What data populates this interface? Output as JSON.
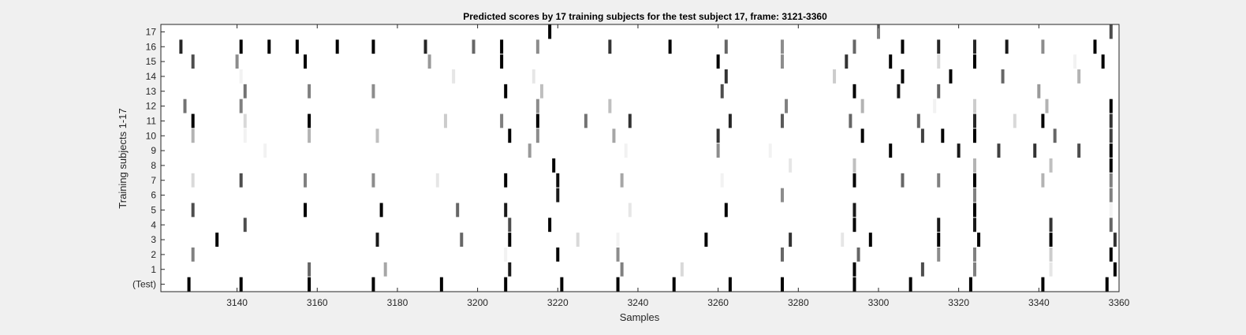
{
  "chart_data": {
    "type": "heatmap",
    "title": "Predicted scores by 17 training subjects for the test subject 17, frame: 3121-3360",
    "xlabel": "Samples",
    "ylabel": "Training subjects 1-17",
    "xlim": [
      3121,
      3360
    ],
    "xticks": [
      3140,
      3160,
      3180,
      3200,
      3220,
      3240,
      3260,
      3280,
      3300,
      3320,
      3340,
      3360
    ],
    "rows": [
      "(Test)",
      "1",
      "2",
      "3",
      "4",
      "5",
      "6",
      "7",
      "8",
      "9",
      "10",
      "11",
      "12",
      "13",
      "14",
      "15",
      "16",
      "17"
    ],
    "colormap": "gray, white = 0, black = 1",
    "grid": false,
    "series": [
      {
        "row": "(Test)",
        "cells": [
          [
            3128,
            1
          ],
          [
            3141,
            1
          ],
          [
            3158,
            1
          ],
          [
            3174,
            1
          ],
          [
            3191,
            1
          ],
          [
            3207,
            1
          ],
          [
            3221,
            1
          ],
          [
            3235,
            1
          ],
          [
            3249,
            1
          ],
          [
            3263,
            1
          ],
          [
            3276,
            1
          ],
          [
            3294,
            1
          ],
          [
            3308,
            1
          ],
          [
            3323,
            1
          ],
          [
            3341,
            1
          ],
          [
            3357,
            1
          ]
        ]
      },
      {
        "row": "1",
        "cells": [
          [
            3158,
            0.6
          ],
          [
            3177,
            0.35
          ],
          [
            3208,
            0.9
          ],
          [
            3236,
            0.5
          ],
          [
            3251,
            0.15
          ],
          [
            3294,
            1
          ],
          [
            3311,
            0.7
          ],
          [
            3324,
            0.5
          ],
          [
            3343,
            0.1
          ],
          [
            3359,
            1
          ]
        ]
      },
      {
        "row": "2",
        "cells": [
          [
            3129,
            0.5
          ],
          [
            3207,
            0.05
          ],
          [
            3220,
            1
          ],
          [
            3235,
            0.45
          ],
          [
            3276,
            0.6
          ],
          [
            3295,
            0.6
          ],
          [
            3315,
            0.45
          ],
          [
            3324,
            0.5
          ],
          [
            3343,
            0.2
          ],
          [
            3358,
            1
          ]
        ]
      },
      {
        "row": "3",
        "cells": [
          [
            3135,
            1
          ],
          [
            3175,
            0.9
          ],
          [
            3196,
            0.6
          ],
          [
            3208,
            1
          ],
          [
            3225,
            0.15
          ],
          [
            3235,
            0.05
          ],
          [
            3257,
            1
          ],
          [
            3278,
            0.8
          ],
          [
            3291,
            0.1
          ],
          [
            3298,
            1
          ],
          [
            3315,
            1
          ],
          [
            3325,
            1
          ],
          [
            3343,
            1
          ],
          [
            3359,
            0.8
          ]
        ]
      },
      {
        "row": "4",
        "cells": [
          [
            3142,
            0.7
          ],
          [
            3208,
            0.7
          ],
          [
            3218,
            1
          ],
          [
            3294,
            1
          ],
          [
            3315,
            0.9
          ],
          [
            3324,
            0.9
          ],
          [
            3343,
            0.8
          ],
          [
            3358,
            0.6
          ]
        ]
      },
      {
        "row": "5",
        "cells": [
          [
            3129,
            0.7
          ],
          [
            3157,
            1
          ],
          [
            3176,
            1
          ],
          [
            3195,
            0.6
          ],
          [
            3207,
            0.9
          ],
          [
            3238,
            0.1
          ],
          [
            3262,
            1
          ],
          [
            3294,
            0.9
          ],
          [
            3324,
            1
          ],
          [
            3358,
            0.05
          ]
        ]
      },
      {
        "row": "6",
        "cells": [
          [
            3220,
            0.9
          ],
          [
            3276,
            0.45
          ],
          [
            3324,
            0.5
          ],
          [
            3358,
            0.5
          ]
        ]
      },
      {
        "row": "7",
        "cells": [
          [
            3129,
            0.15
          ],
          [
            3141,
            0.7
          ],
          [
            3157,
            0.5
          ],
          [
            3174,
            0.45
          ],
          [
            3190,
            0.1
          ],
          [
            3207,
            1
          ],
          [
            3220,
            0.95
          ],
          [
            3236,
            0.35
          ],
          [
            3261,
            0.05
          ],
          [
            3294,
            1
          ],
          [
            3306,
            0.6
          ],
          [
            3315,
            0.5
          ],
          [
            3324,
            1
          ],
          [
            3341,
            0.3
          ],
          [
            3358,
            0.5
          ]
        ]
      },
      {
        "row": "8",
        "cells": [
          [
            3219,
            1
          ],
          [
            3278,
            0.1
          ],
          [
            3294,
            0.25
          ],
          [
            3324,
            0.3
          ],
          [
            3343,
            0.25
          ],
          [
            3358,
            1
          ]
        ]
      },
      {
        "row": "9",
        "cells": [
          [
            3147,
            0.05
          ],
          [
            3213,
            0.4
          ],
          [
            3237,
            0.05
          ],
          [
            3260,
            0.45
          ],
          [
            3273,
            0.05
          ],
          [
            3303,
            1
          ],
          [
            3320,
            0.9
          ],
          [
            3330,
            0.75
          ],
          [
            3339,
            0.8
          ],
          [
            3350,
            0.7
          ],
          [
            3358,
            1
          ]
        ]
      },
      {
        "row": "10",
        "cells": [
          [
            3129,
            0.3
          ],
          [
            3142,
            0.05
          ],
          [
            3158,
            0.3
          ],
          [
            3175,
            0.25
          ],
          [
            3208,
            1
          ],
          [
            3215,
            0.45
          ],
          [
            3234,
            0.35
          ],
          [
            3260,
            0.8
          ],
          [
            3296,
            1
          ],
          [
            3311,
            0.75
          ],
          [
            3316,
            1
          ],
          [
            3324,
            1
          ],
          [
            3344,
            0.6
          ],
          [
            3358,
            0.75
          ]
        ]
      },
      {
        "row": "11",
        "cells": [
          [
            3129,
            1
          ],
          [
            3142,
            0.15
          ],
          [
            3158,
            1
          ],
          [
            3192,
            0.2
          ],
          [
            3206,
            0.5
          ],
          [
            3215,
            1
          ],
          [
            3227,
            0.55
          ],
          [
            3238,
            0.8
          ],
          [
            3263,
            0.85
          ],
          [
            3276,
            0.65
          ],
          [
            3293,
            0.6
          ],
          [
            3310,
            0.6
          ],
          [
            3324,
            0.85
          ],
          [
            3334,
            0.15
          ],
          [
            3341,
            1
          ],
          [
            3358,
            0.8
          ]
        ]
      },
      {
        "row": "12",
        "cells": [
          [
            3127,
            0.55
          ],
          [
            3141,
            0.5
          ],
          [
            3215,
            0.45
          ],
          [
            3233,
            0.25
          ],
          [
            3277,
            0.5
          ],
          [
            3296,
            0.3
          ],
          [
            3314,
            0.05
          ],
          [
            3324,
            0.2
          ],
          [
            3342,
            0.3
          ],
          [
            3358,
            1
          ]
        ]
      },
      {
        "row": "13",
        "cells": [
          [
            3142,
            0.55
          ],
          [
            3158,
            0.5
          ],
          [
            3174,
            0.45
          ],
          [
            3207,
            1
          ],
          [
            3216,
            0.25
          ],
          [
            3261,
            0.7
          ],
          [
            3294,
            1
          ],
          [
            3305,
            0.9
          ],
          [
            3315,
            0.6
          ],
          [
            3340,
            0.4
          ]
        ]
      },
      {
        "row": "14",
        "cells": [
          [
            3141,
            0.05
          ],
          [
            3194,
            0.1
          ],
          [
            3214,
            0.1
          ],
          [
            3262,
            0.8
          ],
          [
            3289,
            0.2
          ],
          [
            3306,
            1
          ],
          [
            3318,
            1
          ],
          [
            3331,
            0.6
          ],
          [
            3350,
            0.3
          ]
        ]
      },
      {
        "row": "15",
        "cells": [
          [
            3129,
            0.7
          ],
          [
            3140,
            0.45
          ],
          [
            3157,
            1
          ],
          [
            3188,
            0.4
          ],
          [
            3206,
            1
          ],
          [
            3260,
            1
          ],
          [
            3276,
            0.45
          ],
          [
            3292,
            0.8
          ],
          [
            3303,
            1
          ],
          [
            3315,
            0.15
          ],
          [
            3324,
            1
          ],
          [
            3349,
            0.05
          ],
          [
            3356,
            1
          ]
        ]
      },
      {
        "row": "16",
        "cells": [
          [
            3126,
            0.85
          ],
          [
            3141,
            1
          ],
          [
            3148,
            1
          ],
          [
            3155,
            1
          ],
          [
            3165,
            1
          ],
          [
            3174,
            1
          ],
          [
            3187,
            0.85
          ],
          [
            3199,
            0.6
          ],
          [
            3206,
            1
          ],
          [
            3215,
            0.45
          ],
          [
            3233,
            0.8
          ],
          [
            3248,
            1
          ],
          [
            3262,
            0.6
          ],
          [
            3276,
            0.45
          ],
          [
            3294,
            0.6
          ],
          [
            3306,
            1
          ],
          [
            3315,
            0.85
          ],
          [
            3324,
            0.85
          ],
          [
            3332,
            0.9
          ],
          [
            3341,
            0.45
          ],
          [
            3354,
            1
          ]
        ]
      },
      {
        "row": "17",
        "cells": [
          [
            3218,
            1
          ],
          [
            3300,
            0.5
          ],
          [
            3358,
            0.7
          ]
        ]
      }
    ]
  }
}
